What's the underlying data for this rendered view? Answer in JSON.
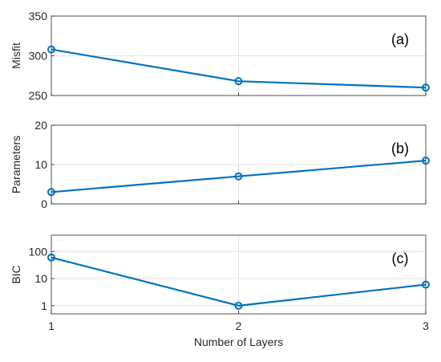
{
  "chart_data": [
    {
      "type": "line",
      "x": [
        1,
        2,
        3
      ],
      "values": [
        308,
        268,
        260
      ],
      "ylabel": "Misfit",
      "ylim": [
        250,
        350
      ],
      "yticks": [
        250,
        300,
        350
      ],
      "ytick_labels": [
        "250",
        "300",
        "350"
      ],
      "yscale": "linear",
      "panel_label": "(a)",
      "grid": true,
      "color": "#0072BD"
    },
    {
      "type": "line",
      "x": [
        1,
        2,
        3
      ],
      "values": [
        3,
        7,
        11
      ],
      "ylabel": "Parameters",
      "ylim": [
        0,
        20
      ],
      "yticks": [
        0,
        10,
        20
      ],
      "ytick_labels": [
        "0",
        "10",
        "20"
      ],
      "yscale": "linear",
      "panel_label": "(b)",
      "grid": true,
      "color": "#0072BD"
    },
    {
      "type": "line",
      "x": [
        1,
        2,
        3
      ],
      "values": [
        60,
        1,
        6
      ],
      "ylabel": "BIC",
      "ylim": [
        0.5,
        400
      ],
      "yticks": [
        1,
        10,
        100
      ],
      "ytick_labels": [
        "1",
        "10",
        "100"
      ],
      "yscale": "log",
      "panel_label": "(c)",
      "grid": true,
      "color": "#0072BD",
      "xlabel": "Number of Layers",
      "xticks": [
        1,
        2,
        3
      ],
      "xtick_labels": [
        "1",
        "2",
        "3"
      ]
    }
  ]
}
